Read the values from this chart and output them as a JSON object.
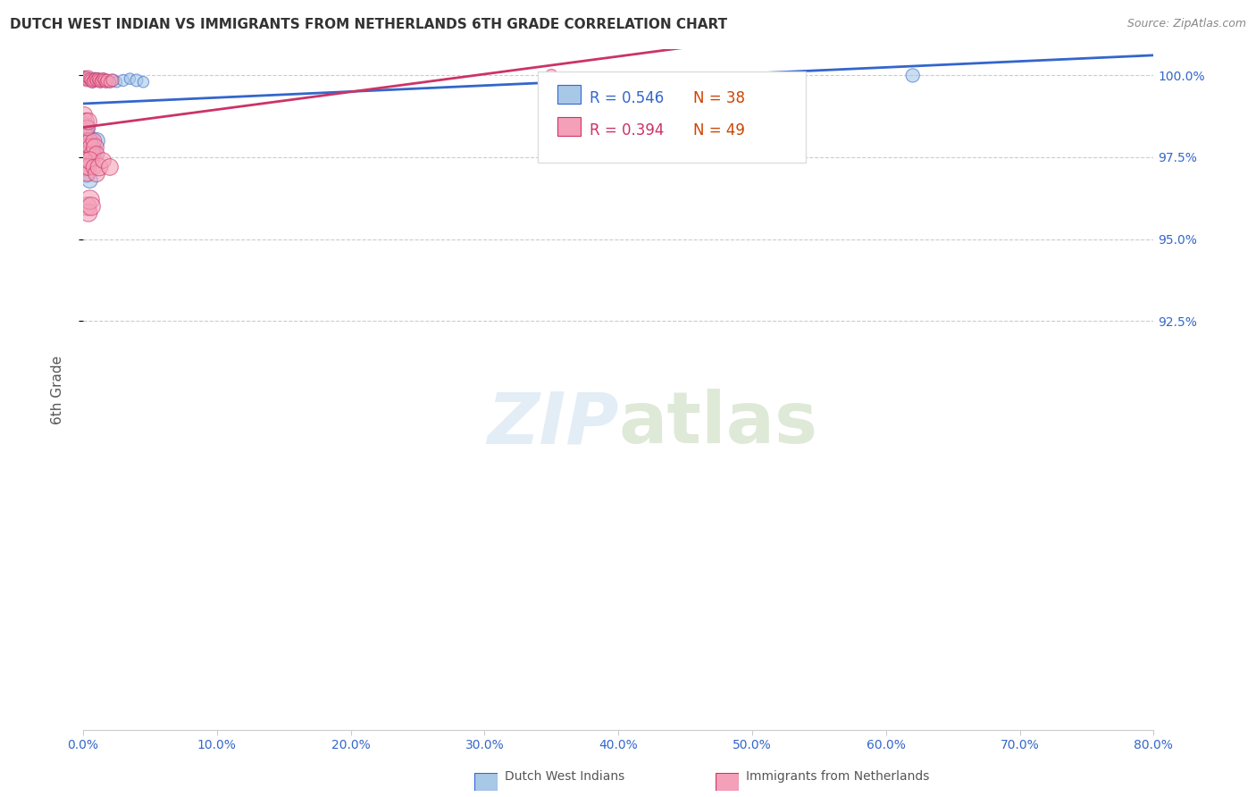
{
  "title": "DUTCH WEST INDIAN VS IMMIGRANTS FROM NETHERLANDS 6TH GRADE CORRELATION CHART",
  "source": "Source: ZipAtlas.com",
  "ylabel": "6th Grade",
  "ytick_labels": [
    "100.0%",
    "97.5%",
    "95.0%",
    "92.5%"
  ],
  "ytick_values": [
    1.0,
    0.975,
    0.95,
    0.925
  ],
  "xmin": 0.0,
  "xmax": 0.8,
  "ymin": 0.8,
  "ymax": 1.008,
  "blue_label": "Dutch West Indians",
  "pink_label": "Immigrants from Netherlands",
  "legend_blue_R": "R = 0.546",
  "legend_blue_N": "N = 38",
  "legend_pink_R": "R = 0.394",
  "legend_pink_N": "N = 49",
  "blue_color": "#a8c8e8",
  "pink_color": "#f4a0b8",
  "trendline_blue": "#3366cc",
  "trendline_pink": "#cc3366",
  "blue_x": [
    0.001,
    0.002,
    0.003,
    0.004,
    0.005,
    0.006,
    0.007,
    0.008,
    0.009,
    0.01,
    0.011,
    0.012,
    0.013,
    0.014,
    0.015,
    0.016,
    0.017,
    0.018,
    0.02,
    0.022,
    0.025,
    0.03,
    0.035,
    0.04,
    0.045,
    0.001,
    0.002,
    0.003,
    0.004,
    0.005,
    0.006,
    0.007,
    0.008,
    0.01,
    0.003,
    0.005,
    0.62,
    0.002
  ],
  "blue_y": [
    0.999,
    0.9995,
    0.999,
    0.9985,
    0.999,
    0.9985,
    0.998,
    0.9985,
    0.999,
    0.9985,
    0.999,
    0.9985,
    0.998,
    0.9985,
    0.999,
    0.9985,
    0.998,
    0.9985,
    0.998,
    0.9985,
    0.998,
    0.9985,
    0.999,
    0.9985,
    0.998,
    0.984,
    0.982,
    0.98,
    0.976,
    0.978,
    0.98,
    0.978,
    0.976,
    0.98,
    0.97,
    0.968,
    1.0,
    0.976
  ],
  "blue_sizes": [
    120,
    100,
    80,
    90,
    100,
    80,
    90,
    80,
    100,
    80,
    90,
    100,
    80,
    90,
    80,
    100,
    80,
    90,
    80,
    100,
    80,
    90,
    80,
    100,
    80,
    300,
    200,
    180,
    220,
    160,
    180,
    200,
    160,
    180,
    200,
    160,
    120,
    120
  ],
  "pink_x": [
    0.001,
    0.002,
    0.003,
    0.004,
    0.005,
    0.006,
    0.007,
    0.008,
    0.009,
    0.01,
    0.011,
    0.012,
    0.013,
    0.014,
    0.015,
    0.016,
    0.017,
    0.018,
    0.02,
    0.022,
    0.001,
    0.002,
    0.003,
    0.004,
    0.005,
    0.006,
    0.007,
    0.008,
    0.009,
    0.01,
    0.001,
    0.002,
    0.003,
    0.004,
    0.005,
    0.008,
    0.01,
    0.012,
    0.015,
    0.02,
    0.003,
    0.004,
    0.005,
    0.006,
    0.35,
    0.001,
    0.002,
    0.003,
    0.004
  ],
  "pink_y": [
    0.9995,
    0.999,
    0.9985,
    0.9995,
    0.999,
    0.9985,
    0.998,
    0.9985,
    0.999,
    0.9985,
    0.999,
    0.9985,
    0.998,
    0.9985,
    0.999,
    0.9985,
    0.998,
    0.9985,
    0.998,
    0.9985,
    0.982,
    0.98,
    0.978,
    0.976,
    0.98,
    0.978,
    0.976,
    0.98,
    0.978,
    0.976,
    0.974,
    0.972,
    0.97,
    0.972,
    0.974,
    0.972,
    0.97,
    0.972,
    0.974,
    0.972,
    0.96,
    0.958,
    0.962,
    0.96,
    1.0,
    0.988,
    0.986,
    0.984,
    0.986
  ],
  "pink_sizes": [
    100,
    90,
    100,
    110,
    90,
    100,
    90,
    100,
    90,
    100,
    90,
    100,
    90,
    100,
    90,
    100,
    90,
    100,
    90,
    100,
    180,
    160,
    200,
    180,
    160,
    200,
    180,
    160,
    200,
    160,
    180,
    200,
    160,
    180,
    200,
    160,
    180,
    200,
    160,
    180,
    220,
    200,
    240,
    220,
    100,
    160,
    180,
    160,
    180
  ]
}
